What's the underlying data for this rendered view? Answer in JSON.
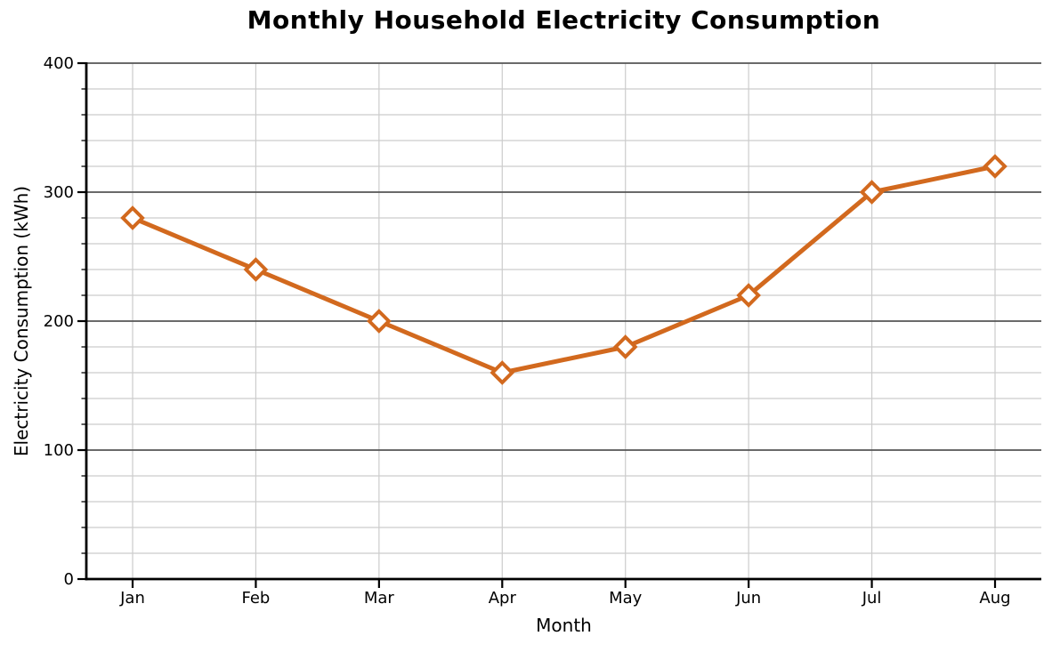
{
  "chart_data": {
    "type": "line",
    "title": "Monthly Household Electricity Consumption",
    "xlabel": "Month",
    "ylabel": "Electricity Consumption (kWh)",
    "categories": [
      "Jan",
      "Feb",
      "Mar",
      "Apr",
      "May",
      "Jun",
      "Jul",
      "Aug"
    ],
    "values": [
      280,
      240,
      200,
      160,
      180,
      220,
      300,
      320
    ],
    "ylim": [
      0,
      400
    ],
    "y_major_ticks": [
      0,
      100,
      200,
      300,
      400
    ],
    "y_minor_step": 20,
    "grid": {
      "major": true,
      "minor": true,
      "vertical_at_categories": true
    },
    "legend": "none",
    "style": {
      "line_color": "#d2691e",
      "marker": "open-diamond",
      "marker_fill": "#ffffff",
      "major_grid_color": "#555555",
      "minor_grid_color": "#cccccc",
      "spine_color": "#000000",
      "text_color": "#000000",
      "background": "#ffffff"
    }
  }
}
